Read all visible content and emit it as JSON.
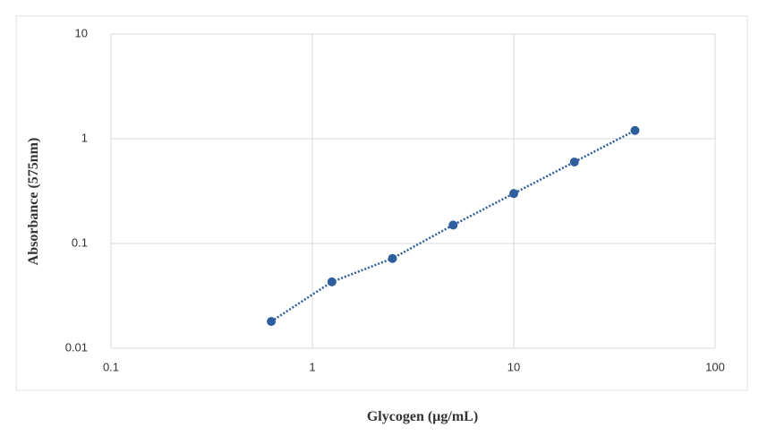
{
  "chart_data": {
    "type": "scatter",
    "x_label": "Glycogen (µg/mL)",
    "y_label": "Absorbance (575nm)",
    "x": [
      0.625,
      1.25,
      2.5,
      5,
      10,
      20,
      40
    ],
    "values": [
      0.018,
      0.043,
      0.072,
      0.15,
      0.3,
      0.6,
      1.2
    ],
    "color": "#2f5e9e",
    "trendline": "dotted",
    "xscale": "log",
    "yscale": "log",
    "xlim": [
      0.1,
      100
    ],
    "ylim": [
      0.01,
      10
    ],
    "xticks": [
      0.1,
      1,
      10,
      100
    ],
    "yticks": [
      0.01,
      0.1,
      1,
      10
    ],
    "grid": true
  }
}
